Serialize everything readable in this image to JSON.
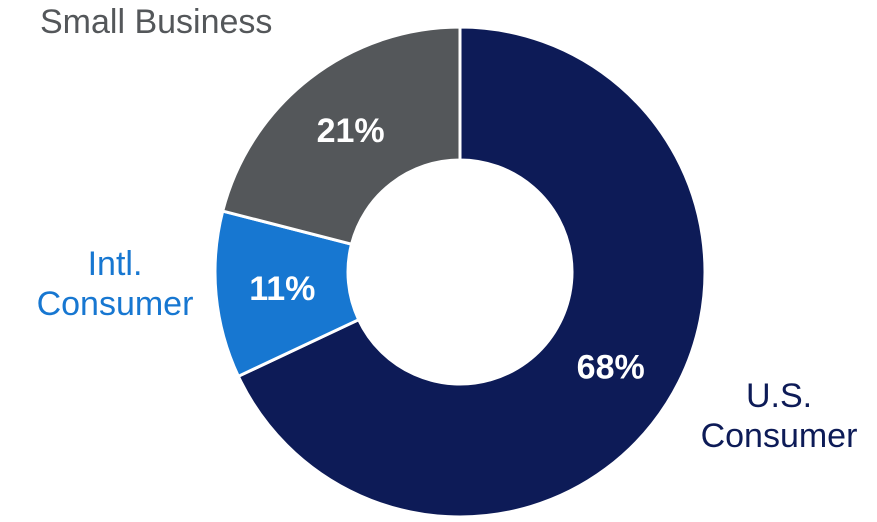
{
  "chart_data": {
    "type": "pie",
    "variant": "donut",
    "title": "",
    "categories": [
      "U.S. Consumer",
      "Intl. Consumer",
      "Small Business"
    ],
    "values": [
      68,
      11,
      21
    ],
    "value_labels": [
      "68%",
      "11%",
      "21%"
    ],
    "colors": [
      "#0d1b57",
      "#1777d1",
      "#54575a"
    ],
    "start_angle_deg": 0,
    "direction": "clockwise",
    "labels": {
      "us": [
        "U.S.",
        "Consumer"
      ],
      "intl": [
        "Intl.",
        "Consumer"
      ],
      "small": [
        "Small Business"
      ]
    },
    "label_colors": {
      "us": "#0d1b57",
      "intl": "#1777d1",
      "small": "#54575a"
    },
    "value_label_color": "#ffffff"
  }
}
